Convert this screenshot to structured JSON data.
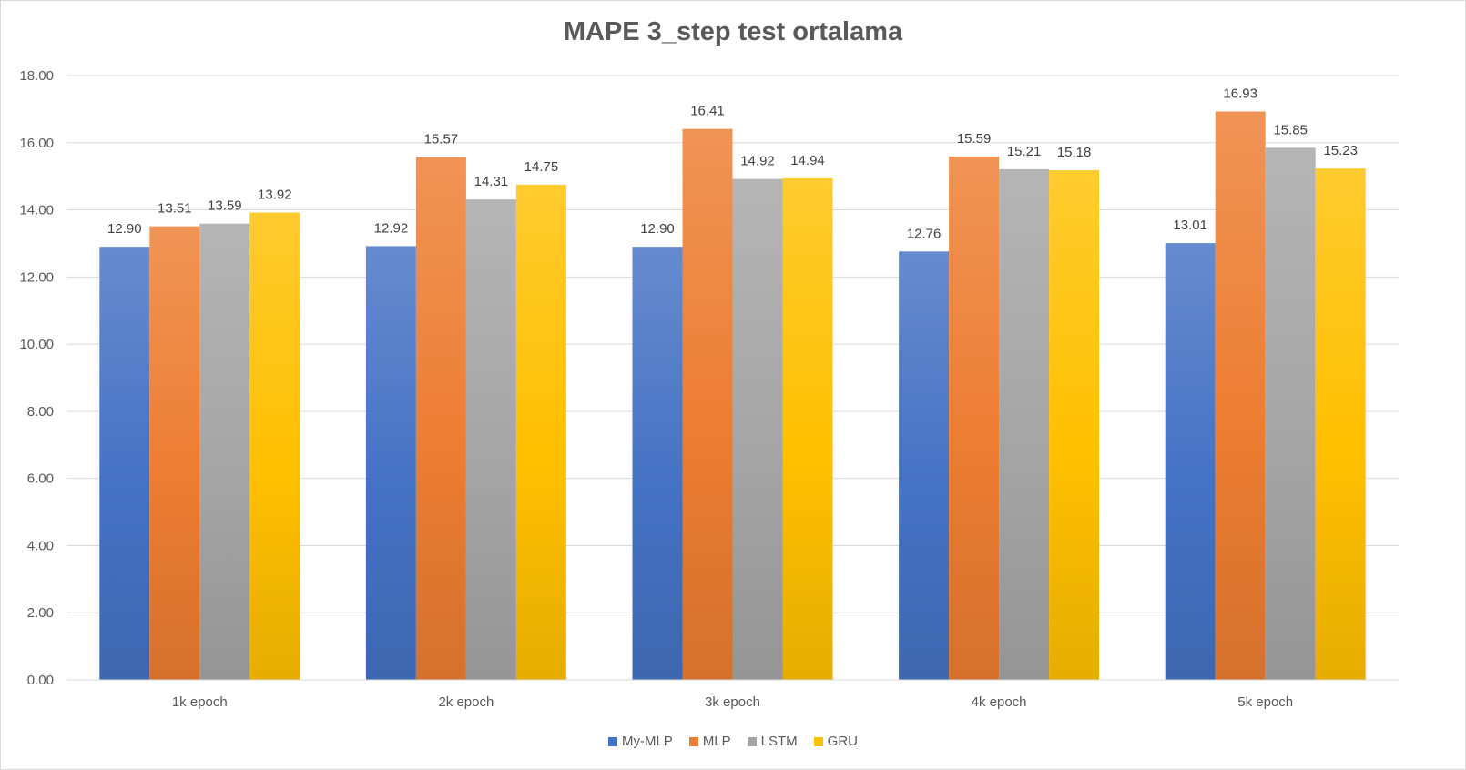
{
  "chart_data": {
    "type": "bar",
    "title": "MAPE 3_step test ortalama",
    "xlabel": "",
    "ylabel": "",
    "ylim": [
      0,
      18
    ],
    "yticks": [
      "0.00",
      "2.00",
      "4.00",
      "6.00",
      "8.00",
      "10.00",
      "12.00",
      "14.00",
      "16.00",
      "18.00"
    ],
    "grid": true,
    "legend_position": "bottom",
    "categories": [
      "1k epoch",
      "2k epoch",
      "3k epoch",
      "4k epoch",
      "5k epoch"
    ],
    "series": [
      {
        "name": "My-MLP",
        "color": "#4472c4",
        "values": [
          12.9,
          12.92,
          12.9,
          12.76,
          13.01
        ],
        "labels": [
          "12.90",
          "12.92",
          "12.90",
          "12.76",
          "13.01"
        ]
      },
      {
        "name": "MLP",
        "color": "#ed7d31",
        "values": [
          13.51,
          15.57,
          16.41,
          15.59,
          16.93
        ],
        "labels": [
          "13.51",
          "15.57",
          "16.41",
          "15.59",
          "16.93"
        ]
      },
      {
        "name": "LSTM",
        "color": "#a5a5a5",
        "values": [
          13.59,
          14.31,
          14.92,
          15.21,
          15.85
        ],
        "labels": [
          "13.59",
          "14.31",
          "14.92",
          "15.21",
          "15.85"
        ]
      },
      {
        "name": "GRU",
        "color": "#ffc000",
        "values": [
          13.92,
          14.75,
          14.94,
          15.18,
          15.23
        ],
        "labels": [
          "13.92",
          "14.75",
          "14.94",
          "15.18",
          "15.23"
        ]
      }
    ]
  }
}
